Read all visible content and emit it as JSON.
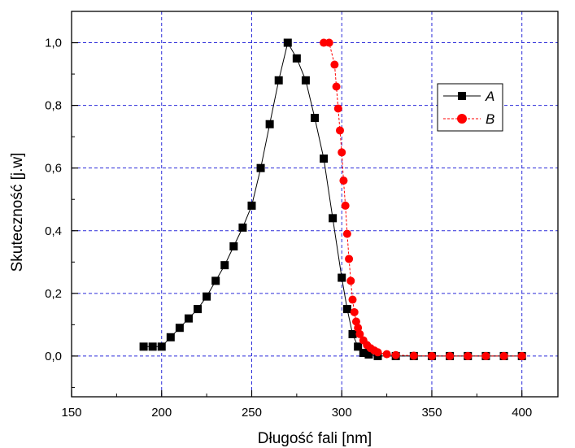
{
  "chart_data": {
    "type": "scatter",
    "xlabel": "Długość fali [nm]",
    "ylabel": "Skuteczność [j.w]",
    "xlim": [
      150,
      420
    ],
    "ylim": [
      -0.13,
      1.1
    ],
    "xticks": [
      150,
      200,
      250,
      300,
      350,
      400
    ],
    "xtick_labels": [
      "150",
      "200",
      "250",
      "300",
      "350",
      "400"
    ],
    "yticks": [
      0.0,
      0.2,
      0.4,
      0.6,
      0.8,
      1.0
    ],
    "ytick_labels": [
      "0,0",
      "0,2",
      "0,4",
      "0,6",
      "0,8",
      "1,0"
    ],
    "grid": true,
    "grid_color": "#2b2bd9",
    "legend_position": "top-right",
    "series": [
      {
        "name": "A",
        "color": "#000000",
        "marker": "square",
        "line": "solid",
        "points": [
          [
            190,
            0.03
          ],
          [
            195,
            0.03
          ],
          [
            200,
            0.03
          ],
          [
            205,
            0.06
          ],
          [
            210,
            0.09
          ],
          [
            215,
            0.12
          ],
          [
            220,
            0.15
          ],
          [
            225,
            0.19
          ],
          [
            230,
            0.24
          ],
          [
            235,
            0.29
          ],
          [
            240,
            0.35
          ],
          [
            245,
            0.41
          ],
          [
            250,
            0.48
          ],
          [
            255,
            0.6
          ],
          [
            260,
            0.74
          ],
          [
            265,
            0.88
          ],
          [
            270,
            1.0
          ],
          [
            275,
            0.95
          ],
          [
            280,
            0.88
          ],
          [
            285,
            0.76
          ],
          [
            290,
            0.63
          ],
          [
            295,
            0.44
          ],
          [
            300,
            0.25
          ],
          [
            303,
            0.15
          ],
          [
            306,
            0.07
          ],
          [
            309,
            0.03
          ],
          [
            312,
            0.01
          ],
          [
            315,
            0.005
          ],
          [
            320,
            0.0
          ],
          [
            330,
            0.0
          ],
          [
            340,
            0.0
          ],
          [
            350,
            0.0
          ],
          [
            360,
            0.0
          ],
          [
            370,
            0.0
          ],
          [
            380,
            0.0
          ],
          [
            390,
            0.0
          ],
          [
            400,
            0.0
          ]
        ]
      },
      {
        "name": "B",
        "color": "#ff0000",
        "marker": "circle",
        "line": "dashed",
        "points": [
          [
            290,
            1.0
          ],
          [
            293,
            1.0
          ],
          [
            296,
            0.93
          ],
          [
            297,
            0.86
          ],
          [
            298,
            0.79
          ],
          [
            299,
            0.72
          ],
          [
            300,
            0.65
          ],
          [
            301,
            0.56
          ],
          [
            302,
            0.48
          ],
          [
            303,
            0.39
          ],
          [
            304,
            0.31
          ],
          [
            305,
            0.24
          ],
          [
            306,
            0.18
          ],
          [
            307,
            0.14
          ],
          [
            308,
            0.11
          ],
          [
            309,
            0.09
          ],
          [
            310,
            0.07
          ],
          [
            312,
            0.05
          ],
          [
            314,
            0.035
          ],
          [
            316,
            0.025
          ],
          [
            318,
            0.018
          ],
          [
            320,
            0.012
          ],
          [
            325,
            0.006
          ],
          [
            330,
            0.003
          ],
          [
            340,
            0.001
          ],
          [
            350,
            0.0
          ],
          [
            360,
            0.0
          ],
          [
            370,
            0.0
          ],
          [
            380,
            0.0
          ],
          [
            390,
            0.0
          ],
          [
            400,
            0.0
          ]
        ]
      }
    ]
  }
}
